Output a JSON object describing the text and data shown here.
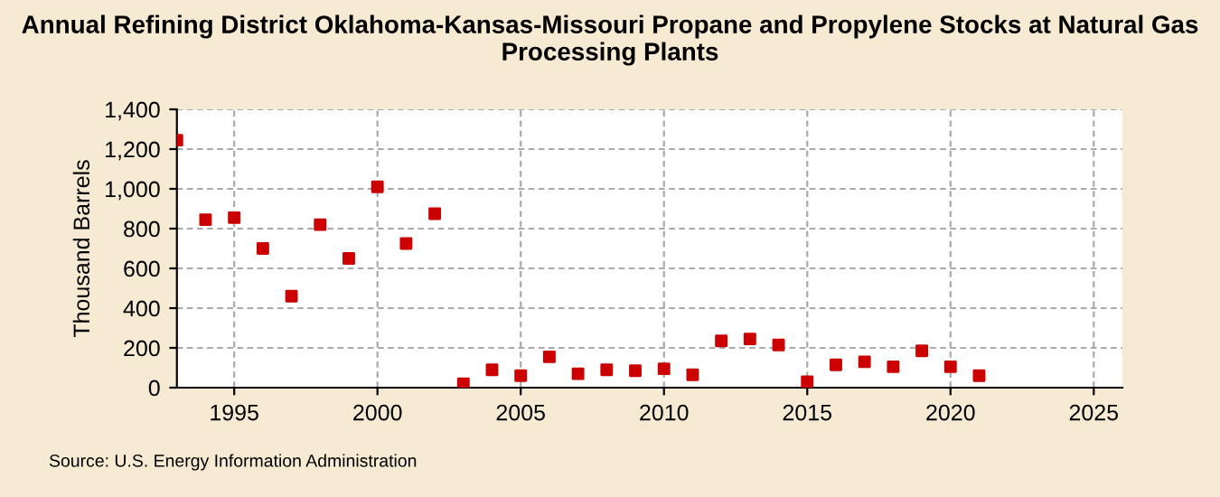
{
  "chart_data": {
    "type": "scatter",
    "title": "Annual Refining District Oklahoma-Kansas-Missouri Propane and Propylene Stocks at Natural Gas Processing Plants",
    "ylabel": "Thousand Barrels",
    "x": [
      1993,
      1994,
      1995,
      1996,
      1997,
      1998,
      1999,
      2000,
      2001,
      2002,
      2003,
      2004,
      2005,
      2006,
      2007,
      2008,
      2009,
      2010,
      2011,
      2012,
      2013,
      2014,
      2015,
      2016,
      2017,
      2018,
      2019,
      2020,
      2021
    ],
    "series": [
      {
        "color": "#cc0000",
        "values": [
          1245,
          845,
          855,
          700,
          460,
          820,
          650,
          1010,
          725,
          875,
          20,
          90,
          60,
          155,
          70,
          90,
          85,
          95,
          65,
          235,
          245,
          215,
          30,
          115,
          130,
          105,
          185,
          105,
          60
        ]
      }
    ],
    "xlim": [
      1993,
      2026
    ],
    "xticks": [
      1995,
      2000,
      2005,
      2010,
      2015,
      2020,
      2025
    ],
    "ylim": [
      0,
      1400
    ],
    "yticks": [
      {
        "value": 0,
        "label": "0"
      },
      {
        "value": 200,
        "label": "200"
      },
      {
        "value": 400,
        "label": "400"
      },
      {
        "value": 600,
        "label": "600"
      },
      {
        "value": 800,
        "label": "800"
      },
      {
        "value": 1000,
        "label": "1,000"
      },
      {
        "value": 1200,
        "label": "1,200"
      },
      {
        "value": 1400,
        "label": "1,400"
      }
    ],
    "grid": true,
    "marker": "square",
    "annotations": [
      "Source: U.S. Energy Information Administration"
    ]
  }
}
